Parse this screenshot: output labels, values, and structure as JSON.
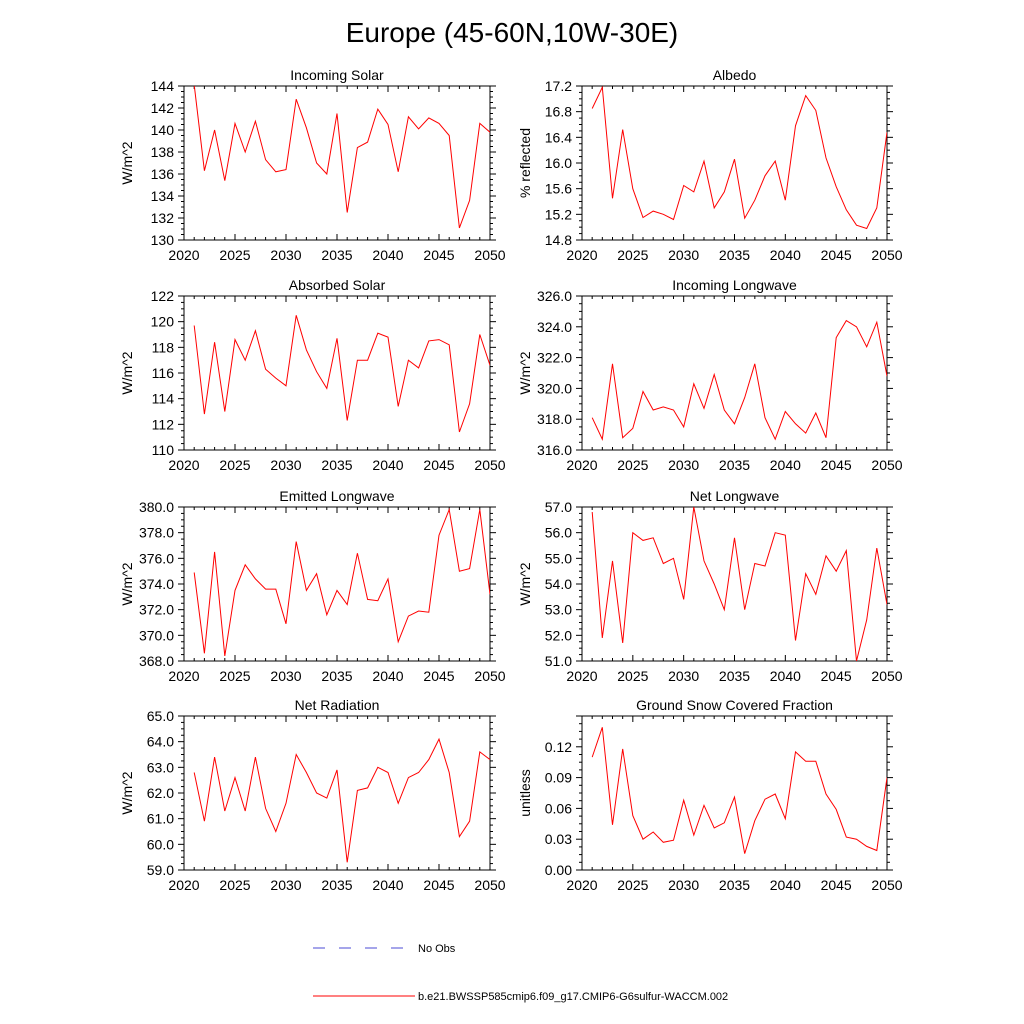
{
  "title": "Europe (45-60N,10W-30E)",
  "colors": {
    "series": "#ff0000",
    "obs": "#4b4bd6",
    "axis": "#000000"
  },
  "legend": [
    {
      "label": "No Obs",
      "style": "dashed",
      "color": "#4b4bd6"
    },
    {
      "label": "b.e21.BWSSP585cmip6.f09_g17.CMIP6-G6sulfur-WACCM.002",
      "style": "solid",
      "color": "#ff0000"
    }
  ],
  "chart_data": [
    {
      "type": "line",
      "title": "Incoming Solar",
      "ylabel": "W/m^2",
      "xlim": [
        2020,
        2050
      ],
      "ylim": [
        130,
        144
      ],
      "yticks": [
        "130",
        "132",
        "134",
        "136",
        "138",
        "140",
        "142",
        "144"
      ],
      "yticks_values": [
        130,
        132,
        134,
        136,
        138,
        140,
        142,
        144
      ],
      "xticks": [
        "2020",
        "2025",
        "2030",
        "2035",
        "2040",
        "2045",
        "2050"
      ],
      "x": [
        2021,
        2022,
        2023,
        2024,
        2025,
        2026,
        2027,
        2028,
        2029,
        2030,
        2031,
        2032,
        2033,
        2034,
        2035,
        2036,
        2037,
        2038,
        2039,
        2040,
        2041,
        2042,
        2043,
        2044,
        2045,
        2046,
        2047,
        2048,
        2049,
        2050
      ],
      "values": [
        144.1,
        136.3,
        140.0,
        135.4,
        140.6,
        138.0,
        140.8,
        137.3,
        136.2,
        136.4,
        142.8,
        140.2,
        137.0,
        136.0,
        141.5,
        132.5,
        138.4,
        138.9,
        141.9,
        140.5,
        136.2,
        141.2,
        140.1,
        141.1,
        140.6,
        139.5,
        131.1,
        133.6,
        140.6,
        139.8
      ]
    },
    {
      "type": "line",
      "title": "Albedo",
      "ylabel": "% reflected",
      "xlim": [
        2020,
        2050
      ],
      "ylim": [
        14.8,
        17.2
      ],
      "yticks": [
        "14.8",
        "15.2",
        "15.6",
        "16.0",
        "16.4",
        "16.8",
        "17.2"
      ],
      "yticks_values": [
        14.8,
        15.2,
        15.6,
        16.0,
        16.4,
        16.8,
        17.2
      ],
      "xticks": [
        "2020",
        "2025",
        "2030",
        "2035",
        "2040",
        "2045",
        "2050"
      ],
      "x": [
        2021,
        2022,
        2023,
        2024,
        2025,
        2026,
        2027,
        2028,
        2029,
        2030,
        2031,
        2032,
        2033,
        2034,
        2035,
        2036,
        2037,
        2038,
        2039,
        2040,
        2041,
        2042,
        2043,
        2044,
        2045,
        2046,
        2047,
        2048,
        2049,
        2050
      ],
      "values": [
        16.85,
        17.18,
        15.45,
        16.52,
        15.6,
        15.15,
        15.25,
        15.2,
        15.12,
        15.65,
        15.55,
        16.03,
        15.3,
        15.55,
        16.06,
        15.14,
        15.42,
        15.8,
        16.03,
        15.42,
        16.58,
        17.05,
        16.82,
        16.08,
        15.63,
        15.27,
        15.03,
        14.98,
        15.3,
        16.48
      ]
    },
    {
      "type": "line",
      "title": "Absorbed Solar",
      "ylabel": "W/m^2",
      "xlim": [
        2020,
        2050
      ],
      "ylim": [
        110,
        122
      ],
      "yticks": [
        "110",
        "112",
        "114",
        "116",
        "118",
        "120",
        "122"
      ],
      "yticks_values": [
        110,
        112,
        114,
        116,
        118,
        120,
        122
      ],
      "xticks": [
        "2020",
        "2025",
        "2030",
        "2035",
        "2040",
        "2045",
        "2050"
      ],
      "x": [
        2021,
        2022,
        2023,
        2024,
        2025,
        2026,
        2027,
        2028,
        2029,
        2030,
        2031,
        2032,
        2033,
        2034,
        2035,
        2036,
        2037,
        2038,
        2039,
        2040,
        2041,
        2042,
        2043,
        2044,
        2045,
        2046,
        2047,
        2048,
        2049,
        2050
      ],
      "values": [
        119.7,
        112.8,
        118.4,
        113.0,
        118.6,
        117.0,
        119.3,
        116.3,
        115.6,
        115.0,
        120.5,
        117.8,
        116.1,
        114.8,
        118.7,
        112.3,
        117.0,
        117.0,
        119.1,
        118.8,
        113.4,
        117.0,
        116.4,
        118.5,
        118.6,
        118.2,
        111.4,
        113.6,
        119.0,
        116.6
      ]
    },
    {
      "type": "line",
      "title": "Incoming Longwave",
      "ylabel": "W/m^2",
      "xlim": [
        2020,
        2050
      ],
      "ylim": [
        316,
        326
      ],
      "yticks": [
        "316.0",
        "318.0",
        "320.0",
        "322.0",
        "324.0",
        "326.0"
      ],
      "yticks_values": [
        316,
        318,
        320,
        322,
        324,
        326
      ],
      "xticks": [
        "2020",
        "2025",
        "2030",
        "2035",
        "2040",
        "2045",
        "2050"
      ],
      "x": [
        2021,
        2022,
        2023,
        2024,
        2025,
        2026,
        2027,
        2028,
        2029,
        2030,
        2031,
        2032,
        2033,
        2034,
        2035,
        2036,
        2037,
        2038,
        2039,
        2040,
        2041,
        2042,
        2043,
        2044,
        2045,
        2046,
        2047,
        2048,
        2049,
        2050
      ],
      "values": [
        318.1,
        316.7,
        321.6,
        316.8,
        317.4,
        319.8,
        318.6,
        318.8,
        318.6,
        317.5,
        320.3,
        318.7,
        320.9,
        318.6,
        317.7,
        319.4,
        321.6,
        318.1,
        316.7,
        318.5,
        317.7,
        317.1,
        318.4,
        316.8,
        323.3,
        324.4,
        324.0,
        322.7,
        324.3,
        320.8
      ]
    },
    {
      "type": "line",
      "title": "Emitted Longwave",
      "ylabel": "W/m^2",
      "xlim": [
        2020,
        2050
      ],
      "ylim": [
        368,
        380
      ],
      "yticks": [
        "368.0",
        "370.0",
        "372.0",
        "374.0",
        "376.0",
        "378.0",
        "380.0"
      ],
      "yticks_values": [
        368,
        370,
        372,
        374,
        376,
        378,
        380
      ],
      "xticks": [
        "2020",
        "2025",
        "2030",
        "2035",
        "2040",
        "2045",
        "2050"
      ],
      "x": [
        2021,
        2022,
        2023,
        2024,
        2025,
        2026,
        2027,
        2028,
        2029,
        2030,
        2031,
        2032,
        2033,
        2034,
        2035,
        2036,
        2037,
        2038,
        2039,
        2040,
        2041,
        2042,
        2043,
        2044,
        2045,
        2046,
        2047,
        2048,
        2049,
        2050
      ],
      "values": [
        374.9,
        368.6,
        376.5,
        368.4,
        373.5,
        375.5,
        374.4,
        373.6,
        373.6,
        370.9,
        377.3,
        373.5,
        374.8,
        371.6,
        373.5,
        372.4,
        376.4,
        372.8,
        372.7,
        374.4,
        369.5,
        371.5,
        371.9,
        371.8,
        377.8,
        379.8,
        375.0,
        375.2,
        379.8,
        373.2
      ]
    },
    {
      "type": "line",
      "title": "Net Longwave",
      "ylabel": "W/m^2",
      "xlim": [
        2020,
        2050
      ],
      "ylim": [
        51,
        57
      ],
      "yticks": [
        "51.0",
        "52.0",
        "53.0",
        "54.0",
        "55.0",
        "56.0",
        "57.0"
      ],
      "yticks_values": [
        51,
        52,
        53,
        54,
        55,
        56,
        57
      ],
      "xticks": [
        "2020",
        "2025",
        "2030",
        "2035",
        "2040",
        "2045",
        "2050"
      ],
      "x": [
        2021,
        2022,
        2023,
        2024,
        2025,
        2026,
        2027,
        2028,
        2029,
        2030,
        2031,
        2032,
        2033,
        2034,
        2035,
        2036,
        2037,
        2038,
        2039,
        2040,
        2041,
        2042,
        2043,
        2044,
        2045,
        2046,
        2047,
        2048,
        2049,
        2050
      ],
      "values": [
        56.8,
        51.9,
        54.9,
        51.7,
        56.0,
        55.7,
        55.8,
        54.8,
        55.0,
        53.4,
        57.0,
        54.9,
        54.0,
        53.0,
        55.8,
        53.0,
        54.8,
        54.7,
        56.0,
        55.9,
        51.8,
        54.4,
        53.6,
        55.1,
        54.5,
        55.3,
        51.0,
        52.6,
        55.4,
        53.2
      ]
    },
    {
      "type": "line",
      "title": "Net Radiation",
      "ylabel": "W/m^2",
      "xlim": [
        2020,
        2050
      ],
      "ylim": [
        59,
        65
      ],
      "yticks": [
        "59.0",
        "60.0",
        "61.0",
        "62.0",
        "63.0",
        "64.0",
        "65.0"
      ],
      "yticks_values": [
        59,
        60,
        61,
        62,
        63,
        64,
        65
      ],
      "xticks": [
        "2020",
        "2025",
        "2030",
        "2035",
        "2040",
        "2045",
        "2050"
      ],
      "x": [
        2021,
        2022,
        2023,
        2024,
        2025,
        2026,
        2027,
        2028,
        2029,
        2030,
        2031,
        2032,
        2033,
        2034,
        2035,
        2036,
        2037,
        2038,
        2039,
        2040,
        2041,
        2042,
        2043,
        2044,
        2045,
        2046,
        2047,
        2048,
        2049,
        2050
      ],
      "values": [
        62.8,
        60.9,
        63.4,
        61.3,
        62.6,
        61.3,
        63.4,
        61.4,
        60.5,
        61.6,
        63.5,
        62.8,
        62.0,
        61.8,
        62.9,
        59.3,
        62.1,
        62.2,
        63.0,
        62.8,
        61.6,
        62.6,
        62.8,
        63.3,
        64.1,
        62.8,
        60.3,
        60.9,
        63.6,
        63.3
      ]
    },
    {
      "type": "line",
      "title": "Ground Snow Covered Fraction",
      "ylabel": "unitless",
      "xlim": [
        2020,
        2050
      ],
      "ylim": [
        0,
        0.15
      ],
      "yticks": [
        "0.00",
        "0.03",
        "0.06",
        "0.09",
        "0.12"
      ],
      "yticks_values": [
        0,
        0.03,
        0.06,
        0.09,
        0.12
      ],
      "xticks": [
        "2020",
        "2025",
        "2030",
        "2035",
        "2040",
        "2045",
        "2050"
      ],
      "x": [
        2021,
        2022,
        2023,
        2024,
        2025,
        2026,
        2027,
        2028,
        2029,
        2030,
        2031,
        2032,
        2033,
        2034,
        2035,
        2036,
        2037,
        2038,
        2039,
        2040,
        2041,
        2042,
        2043,
        2044,
        2045,
        2046,
        2047,
        2048,
        2049,
        2050
      ],
      "values": [
        0.11,
        0.139,
        0.044,
        0.118,
        0.053,
        0.03,
        0.037,
        0.027,
        0.029,
        0.068,
        0.034,
        0.063,
        0.041,
        0.046,
        0.071,
        0.016,
        0.048,
        0.069,
        0.074,
        0.05,
        0.115,
        0.106,
        0.106,
        0.074,
        0.059,
        0.032,
        0.03,
        0.023,
        0.019,
        0.09
      ]
    }
  ]
}
